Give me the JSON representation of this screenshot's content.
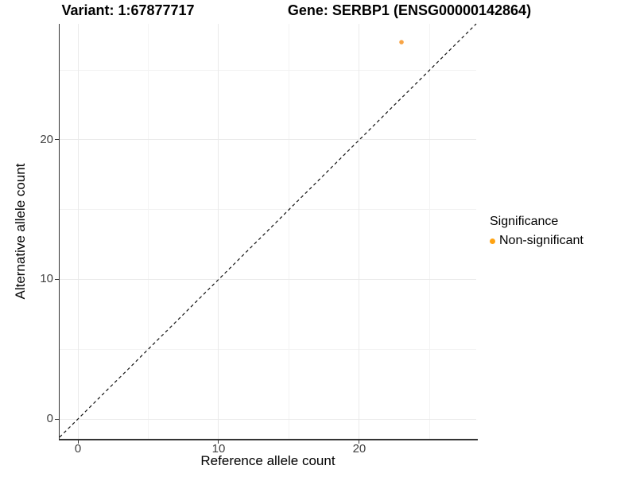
{
  "titles": {
    "variant": "Variant: 1:67877717",
    "gene": "Gene: SERBP1 (ENSG00000142864)"
  },
  "x_axis": {
    "label": "Reference allele count",
    "tick_labels": [
      "0",
      "10",
      "20"
    ]
  },
  "y_axis": {
    "label": "Alternative allele count",
    "tick_labels": [
      "0",
      "10",
      "20"
    ]
  },
  "legend": {
    "title": "Significance",
    "items": [
      {
        "label": "Non-significant",
        "marker": "dot",
        "color": "#FFA312"
      }
    ]
  },
  "chart_data": {
    "type": "scatter",
    "titles": [
      "Variant: 1:67877717",
      "Gene: SERBP1 (ENSG00000142864)"
    ],
    "xlabel": "Reference allele count",
    "ylabel": "Alternative allele count",
    "xlim": [
      -1.3,
      28.31
    ],
    "ylim": [
      -1.42,
      28.31
    ],
    "x_ticks": [
      0,
      10,
      20
    ],
    "y_ticks": [
      0,
      10,
      20
    ],
    "grid": {
      "major": [
        0,
        10,
        20
      ],
      "minor": [
        5,
        15,
        25
      ]
    },
    "series": [
      {
        "name": "Non-significant",
        "color": "#F8A445",
        "marker": "circle",
        "points": [
          {
            "x": 23,
            "y": 27
          }
        ]
      }
    ],
    "reference_line": {
      "type": "identity y=x",
      "style": "dashed",
      "color": "#111111"
    },
    "legend_position": "right",
    "legend_title": "Significance",
    "grid_on": true
  },
  "colors": {
    "point": "#F8A445",
    "legend_marker": "#FFA312",
    "grid_major": "#EAEAEA",
    "grid_minor": "#F3F3F3",
    "axis_line": "#333333",
    "tick_label": "#404040",
    "identity_line": "#111111",
    "background": "#FFFFFF"
  }
}
